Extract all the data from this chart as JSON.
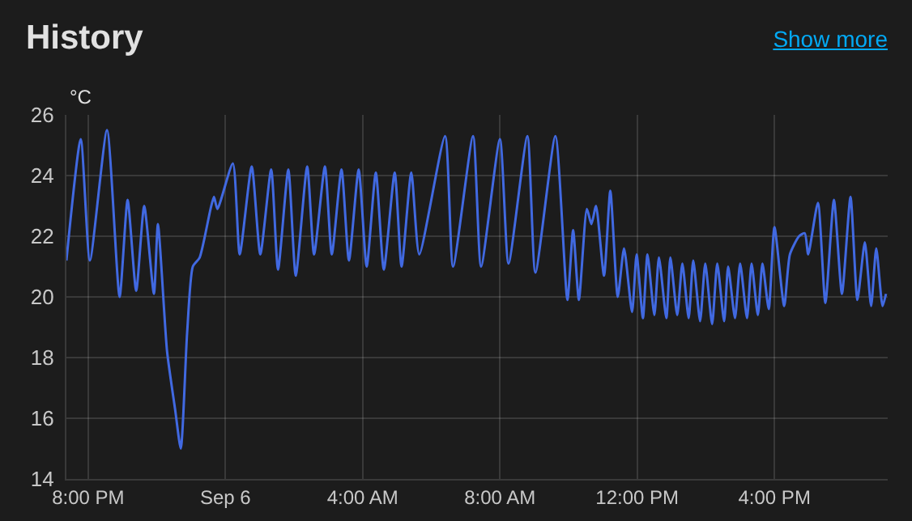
{
  "chart_data": {
    "type": "line",
    "title": "History",
    "ylabel": "°C",
    "annotations": [
      "Show more"
    ],
    "x": [
      "--09-05T19:22",
      "--09-05T19:47",
      "--09-05T20:03",
      "--09-05T20:33",
      "--09-05T20:55",
      "--09-05T21:09",
      "--09-05T21:24",
      "--09-05T21:38",
      "--09-05T21:55",
      "--09-05T22:02",
      "--09-05T22:18",
      "--09-05T22:32",
      "--09-05T22:42",
      "--09-05T22:53",
      "--09-05T23:03",
      "--09-05T23:15",
      "--09-05T23:34",
      "--09-05T23:40",
      "--09-05T23:46",
      "--09-06T00:13",
      "--09-06T00:25",
      "--09-06T00:46",
      "--09-06T01:01",
      "--09-06T01:20",
      "--09-06T01:32",
      "--09-06T01:50",
      "--09-06T02:03",
      "--09-06T02:23",
      "--09-06T02:35",
      "--09-06T02:54",
      "--09-06T03:06",
      "--09-06T03:23",
      "--09-06T03:36",
      "--09-06T03:53",
      "--09-06T04:07",
      "--09-06T04:23",
      "--09-06T04:37",
      "--09-06T04:56",
      "--09-06T05:08",
      "--09-06T05:25",
      "--09-06T05:39",
      "--09-06T06:24",
      "--09-06T06:38",
      "--09-06T07:13",
      "--09-06T07:27",
      "--09-06T08:00",
      "--09-06T08:15",
      "--09-06T08:48",
      "--09-06T09:02",
      "--09-06T09:37",
      "--09-06T09:58",
      "--09-06T10:08",
      "--09-06T10:18",
      "--09-06T10:32",
      "--09-06T10:40",
      "--09-06T10:48",
      "--09-06T11:02",
      "--09-06T11:13",
      "--09-06T11:26",
      "--09-06T11:37",
      "--09-06T11:51",
      "--09-06T11:59",
      "--09-06T12:10",
      "--09-06T12:18",
      "--09-06T12:30",
      "--09-06T12:38",
      "--09-06T12:51",
      "--09-06T12:58",
      "--09-06T13:10",
      "--09-06T13:19",
      "--09-06T13:30",
      "--09-06T13:38",
      "--09-06T13:50",
      "--09-06T13:59",
      "--09-06T14:11",
      "--09-06T14:20",
      "--09-06T14:32",
      "--09-06T14:39",
      "--09-06T14:51",
      "--09-06T15:00",
      "--09-06T15:12",
      "--09-06T15:20",
      "--09-06T15:31",
      "--09-06T15:39",
      "--09-06T15:50",
      "--09-06T16:00",
      "--09-06T16:17",
      "--09-06T16:27",
      "--09-06T16:43",
      "--09-06T16:53",
      "--09-06T16:59",
      "--09-06T17:16",
      "--09-06T17:29",
      "--09-06T17:44",
      "--09-06T17:58",
      "--09-06T18:13",
      "--09-06T18:25",
      "--09-06T18:38",
      "--09-06T18:49",
      "--09-06T18:58",
      "--09-06T19:09",
      "--09-06T19:15"
    ],
    "series": [
      {
        "color": "#4169e1",
        "values": [
          21.2,
          25.2,
          21.2,
          25.5,
          20.0,
          23.2,
          20.2,
          23.0,
          20.1,
          22.4,
          18.2,
          16.3,
          15.0,
          18.8,
          21.0,
          21.3,
          22.9,
          23.3,
          22.9,
          24.4,
          21.4,
          24.3,
          21.4,
          24.2,
          20.9,
          24.2,
          20.7,
          24.3,
          21.4,
          24.3,
          21.4,
          24.2,
          21.2,
          24.2,
          21.0,
          24.1,
          20.9,
          24.1,
          21.0,
          24.1,
          21.4,
          25.3,
          21.0,
          25.3,
          21.0,
          25.2,
          21.1,
          25.3,
          20.8,
          25.3,
          19.9,
          22.2,
          19.9,
          22.9,
          22.4,
          23.0,
          20.7,
          23.5,
          20.0,
          21.6,
          19.5,
          21.4,
          19.3,
          21.4,
          19.4,
          21.3,
          19.3,
          21.3,
          19.4,
          21.1,
          19.3,
          21.2,
          19.2,
          21.1,
          19.1,
          21.1,
          19.2,
          21.0,
          19.3,
          21.1,
          19.3,
          21.1,
          19.4,
          21.1,
          19.6,
          22.3,
          19.7,
          21.4,
          22.0,
          22.1,
          21.4,
          23.1,
          19.8,
          23.2,
          20.1,
          23.3,
          19.9,
          21.8,
          19.7,
          21.6,
          19.7,
          20.1
        ]
      }
    ],
    "xlim": [
      "--09-05T19:22",
      "--09-06T19:18"
    ],
    "xticks": [
      {
        "value": "--09-05T20:00",
        "label": "8:00 PM"
      },
      {
        "value": "--09-06T00:00",
        "label": "Sep 6"
      },
      {
        "value": "--09-06T04:00",
        "label": "4:00 AM"
      },
      {
        "value": "--09-06T08:00",
        "label": "8:00 AM"
      },
      {
        "value": "--09-06T12:00",
        "label": "12:00 PM"
      },
      {
        "value": "--09-06T16:00",
        "label": "4:00 PM"
      }
    ],
    "ylim": [
      14,
      26
    ],
    "yticks": [
      14,
      16,
      18,
      20,
      22,
      24,
      26
    ],
    "grid": true,
    "legend": false,
    "marker": "none",
    "line_style": "solid"
  }
}
